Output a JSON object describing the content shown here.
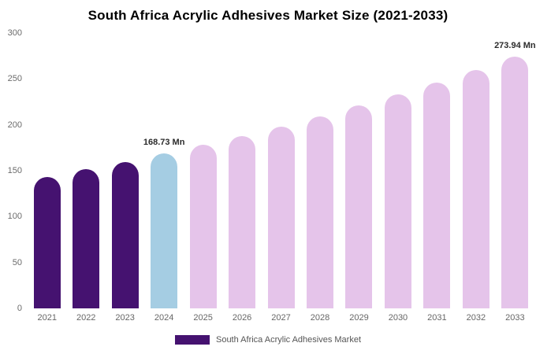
{
  "chart_data": {
    "type": "bar",
    "title": "South Africa Acrylic Adhesives Market Size (2021-2033)",
    "categories": [
      "2021",
      "2022",
      "2023",
      "2024",
      "2025",
      "2026",
      "2027",
      "2028",
      "2029",
      "2030",
      "2031",
      "2032",
      "2033"
    ],
    "values": [
      143.4,
      151.4,
      159.8,
      168.73,
      178.1,
      188.0,
      198.4,
      209.4,
      221.1,
      233.3,
      246.3,
      259.9,
      273.94
    ],
    "unit": "Mn",
    "ylim": [
      0,
      300
    ],
    "yticks": [
      0,
      50,
      100,
      150,
      200,
      250,
      300
    ],
    "grid": false,
    "legend_position": "bottom",
    "bar_roles": [
      "historical",
      "historical",
      "historical",
      "current",
      "forecast",
      "forecast",
      "forecast",
      "forecast",
      "forecast",
      "forecast",
      "forecast",
      "forecast",
      "forecast"
    ],
    "colors": {
      "historical": "#451270",
      "current": "#a5cde3",
      "forecast": "#e5c4ea"
    },
    "annotations": [
      {
        "category": "2024",
        "text": "168.73 Mn"
      },
      {
        "category": "2033",
        "text": "273.94 Mn"
      }
    ],
    "legend": [
      {
        "label": "South Africa Acrylic Adhesives Market",
        "color": "#451270"
      }
    ]
  }
}
